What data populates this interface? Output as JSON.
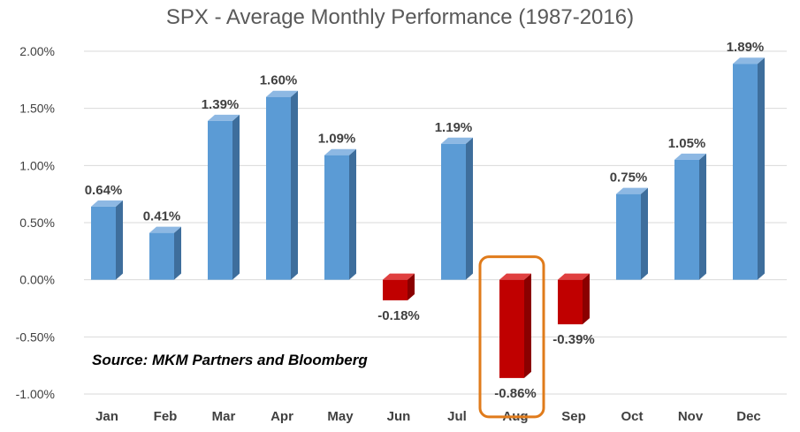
{
  "chart_data": {
    "type": "bar",
    "title": "SPX - Average Monthly Performance (1987-2016)",
    "categories": [
      "Jan",
      "Feb",
      "Mar",
      "Apr",
      "May",
      "Jun",
      "Jul",
      "Aug",
      "Sep",
      "Oct",
      "Nov",
      "Dec"
    ],
    "values": [
      0.64,
      0.41,
      1.39,
      1.6,
      1.09,
      -0.18,
      1.19,
      -0.86,
      -0.39,
      0.75,
      1.05,
      1.89
    ],
    "data_labels": [
      "0.64%",
      "0.41%",
      "1.39%",
      "1.60%",
      "1.09%",
      "-0.18%",
      "1.19%",
      "-0.86%",
      "-0.39%",
      "0.75%",
      "1.05%",
      "1.89%"
    ],
    "y_ticks": [
      2.0,
      1.5,
      1.0,
      0.5,
      0.0,
      -0.5,
      -1.0
    ],
    "y_tick_labels": [
      "2.00%",
      "1.50%",
      "1.00%",
      "0.50%",
      "0.00%",
      "-0.50%",
      "-1.00%"
    ],
    "ylim": [
      -1.0,
      2.0
    ],
    "grid": true,
    "bar_style": "3d",
    "colors": {
      "positive": "#5B9BD5",
      "positive_side": "#3E6E9C",
      "positive_top": "#8DB8E3",
      "negative": "#C00000",
      "negative_side": "#8A0000",
      "negative_top": "#E04040",
      "grid": "#D9D9D9",
      "highlight": "#E07B1B"
    },
    "highlighted_category": "Aug",
    "annotation": "Source: MKM Partners and Bloomberg"
  }
}
